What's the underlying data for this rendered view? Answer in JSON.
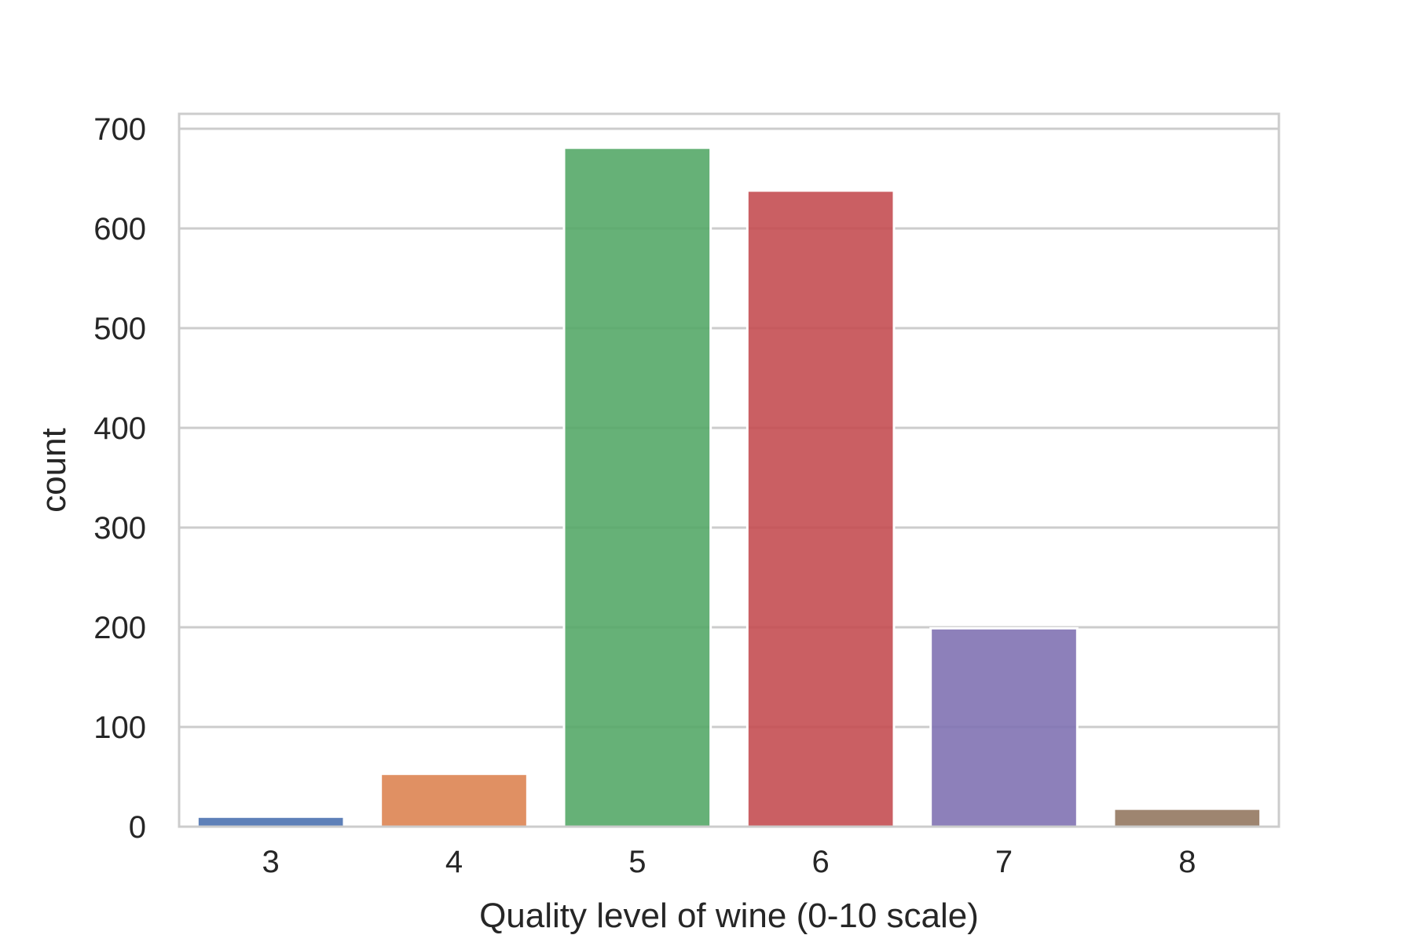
{
  "chart_data": {
    "type": "bar",
    "categories": [
      "3",
      "4",
      "5",
      "6",
      "7",
      "8"
    ],
    "values": [
      10,
      53,
      681,
      638,
      199,
      18
    ],
    "colors": [
      "#4c72b0",
      "#dd8452",
      "#55a868",
      "#c44e52",
      "#8172b3",
      "#937860"
    ],
    "title": "",
    "xlabel": "Quality level of wine (0-10 scale)",
    "ylabel": "count",
    "ylim": [
      0,
      715
    ],
    "yticks": [
      0,
      100,
      200,
      300,
      400,
      500,
      600,
      700
    ],
    "ytick_labels": [
      "0",
      "100",
      "200",
      "300",
      "400",
      "500",
      "600",
      "700"
    ],
    "grid": "horizontal",
    "gridColor": "#cccccc",
    "spineColor": "#cccccc",
    "barOpacity": 0.9
  }
}
